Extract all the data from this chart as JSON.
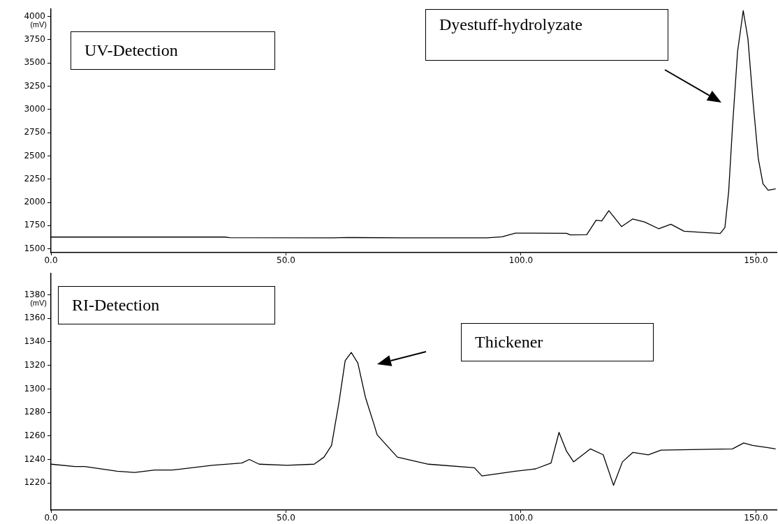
{
  "chart_data": [
    {
      "type": "line",
      "title": "UV-Detection",
      "ylabel": "(mV)",
      "xlim": [
        0,
        154.4
      ],
      "ylim": [
        1460,
        4080
      ],
      "marker": "none",
      "xticks": [
        {
          "value": 0,
          "label": "0.0"
        },
        {
          "value": 50,
          "label": "50.0"
        },
        {
          "value": 100,
          "label": "100.0"
        },
        {
          "value": 150,
          "label": "150.0"
        }
      ],
      "yticks": [
        1500,
        1750,
        2000,
        2250,
        2500,
        2750,
        3000,
        3250,
        3500,
        3750,
        4000
      ],
      "annotations": [
        "Dyestuff-hydrolyzate"
      ],
      "series": [
        {
          "color": "#000000",
          "x": [
            0,
            37,
            38,
            60,
            63,
            75,
            92.8,
            96,
            98.8,
            109.7,
            110.5,
            114,
            116,
            117.2,
            118.7,
            121.4,
            123.8,
            126.3,
            129.3,
            131.9,
            134.7,
            142.4,
            143.4,
            144.2,
            145.0,
            146.1,
            147.3,
            148.3,
            149.4,
            150.5,
            151.5,
            152.6,
            154.2
          ],
          "values": [
            1627,
            1627,
            1620,
            1618,
            1622,
            1618,
            1618,
            1630,
            1670,
            1668,
            1650,
            1652,
            1808,
            1800,
            1911,
            1740,
            1822,
            1790,
            1717,
            1765,
            1690,
            1665,
            1730,
            2116,
            2802,
            3626,
            4063,
            3760,
            3076,
            2473,
            2200,
            2131,
            2146
          ]
        }
      ]
    },
    {
      "type": "line",
      "title": "RI-Detection",
      "ylabel": "(mV)",
      "xlim": [
        0,
        154.4
      ],
      "ylim": [
        1197,
        1398
      ],
      "marker": "none",
      "xticks": [
        {
          "value": 0,
          "label": "0.0"
        },
        {
          "value": 50,
          "label": "50.0"
        },
        {
          "value": 100,
          "label": "100.0"
        },
        {
          "value": 150,
          "label": "150.0"
        }
      ],
      "yticks": [
        1220,
        1240,
        1260,
        1280,
        1300,
        1320,
        1340,
        1360,
        1380
      ],
      "annotations": [
        "Thickener"
      ],
      "series": [
        {
          "color": "#000000",
          "x": [
            0,
            5.1,
            7.2,
            14.1,
            17.8,
            22.1,
            25.8,
            34.3,
            40.6,
            42.2,
            44.3,
            50.2,
            56.0,
            58.1,
            59.7,
            61.3,
            62.6,
            63.9,
            65.3,
            66.9,
            68.8,
            69.4,
            73.7,
            80.3,
            90.1,
            91.7,
            98.8,
            103.1,
            106.4,
            108.1,
            109.7,
            111.2,
            114.8,
            117.5,
            119.7,
            121.6,
            123.8,
            127.1,
            129.8,
            145,
            147.4,
            149.3,
            152.6,
            154.2
          ],
          "values": [
            1236,
            1234,
            1234,
            1230,
            1229,
            1231,
            1231,
            1235,
            1237,
            1240,
            1236,
            1235,
            1236,
            1242,
            1252,
            1289,
            1324,
            1331,
            1322,
            1293,
            1269,
            1261,
            1242,
            1236,
            1233,
            1226,
            1230,
            1232,
            1237,
            1263,
            1247,
            1238,
            1249,
            1244,
            1218,
            1238,
            1246,
            1244,
            1248,
            1249,
            1254,
            1252,
            1250,
            1249
          ]
        }
      ]
    }
  ]
}
